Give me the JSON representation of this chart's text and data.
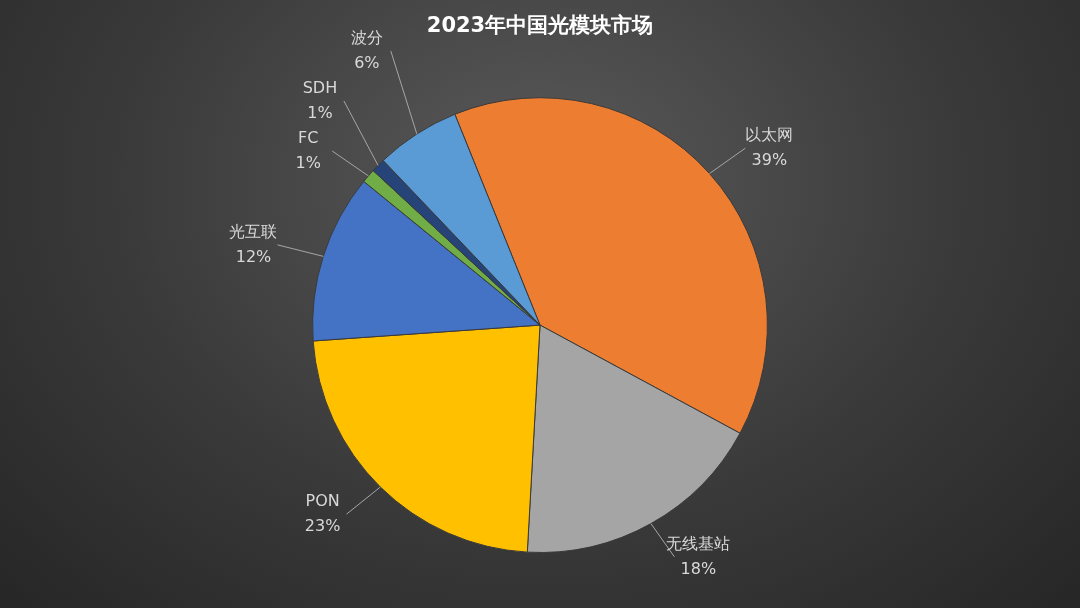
{
  "chart_data": {
    "type": "pie",
    "title": "2023年中国光模块市场",
    "categories": [
      "以太网",
      "无线基站",
      "PON",
      "光互联",
      "FC",
      "SDH",
      "波分"
    ],
    "values": [
      39,
      18,
      23,
      12,
      1,
      1,
      6
    ],
    "value_labels": [
      "39%",
      "18%",
      "23%",
      "12%",
      "1%",
      "1%",
      "6%"
    ],
    "colors": [
      "#ed7d31",
      "#a5a5a5",
      "#ffc000",
      "#4472c4",
      "#70ad47",
      "#264478",
      "#5b9bd5"
    ],
    "legend": false
  }
}
